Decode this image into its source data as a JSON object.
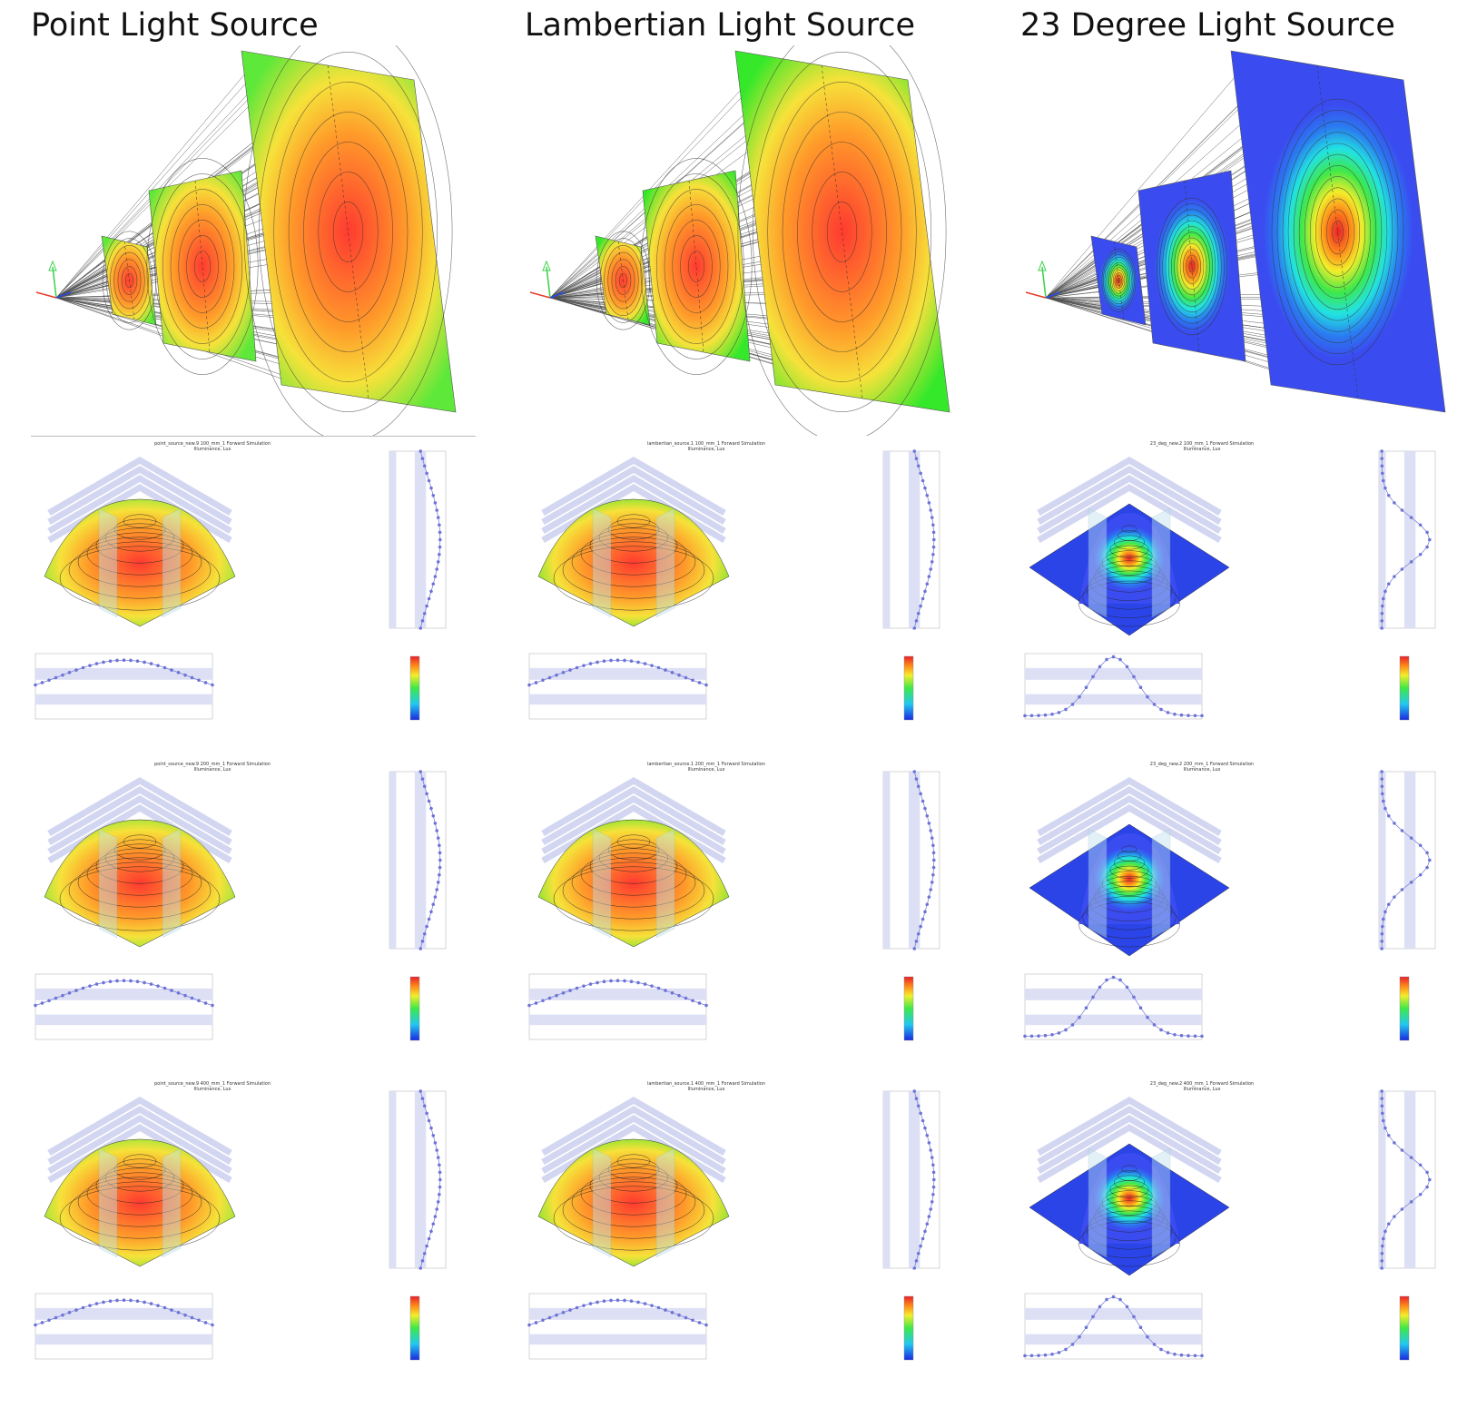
{
  "columns": [
    {
      "title": "Point Light Source",
      "scheme": "warm",
      "accent_center": "#ff3a30",
      "accent_edge": "#5ee83a",
      "panels": [
        {
          "title": "point_source_new.9 100_mm_1 Forward Simulation",
          "subtitle": "Illuminance, Lux"
        },
        {
          "title": "point_source_new.9 200_mm_1 Forward Simulation",
          "subtitle": "Illuminance, Lux"
        },
        {
          "title": "point_source_new.9 400_mm_1 Forward Simulation",
          "subtitle": "Illuminance, Lux"
        }
      ]
    },
    {
      "title": "Lambertian Light Source",
      "scheme": "warm",
      "accent_center": "#ff3a30",
      "accent_edge": "#36e82a",
      "panels": [
        {
          "title": "lambertian_source.1 100_mm_1 Forward Simulation",
          "subtitle": "Illuminance, Lux"
        },
        {
          "title": "lambertian_source.1 200_mm_1 Forward Simulation",
          "subtitle": "Illuminance, Lux"
        },
        {
          "title": "lambertian_source.1 400_mm_1 Forward Simulation",
          "subtitle": "Illuminance, Lux"
        }
      ]
    },
    {
      "title": "23 Degree Light Source",
      "scheme": "rainbow",
      "accent_center": "#e8302a",
      "accent_edge": "#3a4cf0",
      "panels": [
        {
          "title": "23_deg_new.2 100_mm_1 Forward Simulation",
          "subtitle": "Illuminance, Lux"
        },
        {
          "title": "23_deg_new.2 200_mm_1 Forward Simulation",
          "subtitle": "Illuminance, Lux"
        },
        {
          "title": "23_deg_new.2 400_mm_1 Forward Simulation",
          "subtitle": "Illuminance, Lux"
        }
      ]
    }
  ]
}
